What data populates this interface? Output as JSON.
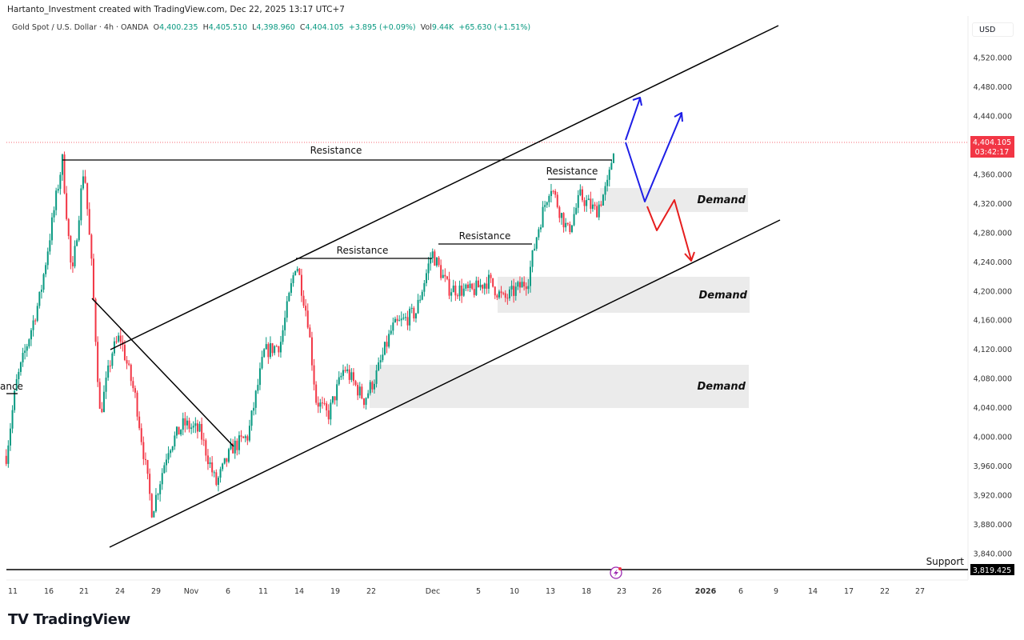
{
  "header": {
    "credit": "Hartanto_Investment created with TradingView.com, Dec 22, 2025 13:17 UTC+7"
  },
  "legend": {
    "symbol": "Gold Spot / U.S. Dollar · 4h · OANDA",
    "open_label": "O",
    "open": "4,400.235",
    "high_label": "H",
    "high": "4,405.510",
    "low_label": "L",
    "low": "4,398.960",
    "close_label": "C",
    "close": "4,404.105",
    "change": "+3.895 (+0.09%)",
    "vol_label": "Vol",
    "vol": "9.44K",
    "vol_change": "+65.630 (+1.51%)"
  },
  "currency": "USD",
  "current_price": {
    "price": "4,404.105",
    "countdown": "03:42:17",
    "color": "#f23645"
  },
  "support_price": "3,819.425",
  "annotations": {
    "resistance": "Resistance",
    "demand": "Demand",
    "support": "Support",
    "cut_label": "ance"
  },
  "colors": {
    "up": "#089981",
    "down": "#f23645",
    "arrow_up": "#1e1ee6",
    "arrow_down": "#e61e1e"
  },
  "branding": "TradingView",
  "chart_data": {
    "type": "candlestick",
    "title": "Gold Spot / U.S. Dollar · 4h · OANDA",
    "ylim": [
      3800,
      4560
    ],
    "y_ticks": [
      "4,520.000",
      "4,480.000",
      "4,440.000",
      "4,360.000",
      "4,320.000",
      "4,280.000",
      "4,240.000",
      "4,200.000",
      "4,160.000",
      "4,120.000",
      "4,080.000",
      "4,040.000",
      "4,000.000",
      "3,960.000",
      "3,920.000",
      "3,880.000",
      "3,840.000"
    ],
    "y_tick_values": [
      4520,
      4480,
      4440,
      4360,
      4320,
      4280,
      4240,
      4200,
      4160,
      4120,
      4080,
      4040,
      4000,
      3960,
      3920,
      3880,
      3840
    ],
    "x_ticks": [
      "11",
      "16",
      "21",
      "24",
      "29",
      "Nov",
      "6",
      "11",
      "14",
      "19",
      "22",
      "Dec",
      "5",
      "10",
      "13",
      "18",
      "23",
      "26",
      "2026",
      "6",
      "9",
      "14",
      "17",
      "22",
      "27"
    ],
    "x_tick_dates": [
      "2025-10-11",
      "2025-10-16",
      "2025-10-21",
      "2025-10-24",
      "2025-10-29",
      "2025-11-01",
      "2025-11-06",
      "2025-11-11",
      "2025-11-14",
      "2025-11-19",
      "2025-11-22",
      "2025-12-01",
      "2025-12-05",
      "2025-12-10",
      "2025-12-13",
      "2025-12-18",
      "2025-12-23",
      "2025-12-26",
      "2026-01-01",
      "2026-01-06",
      "2026-01-09",
      "2026-01-14",
      "2026-01-17",
      "2026-01-22",
      "2026-01-27"
    ],
    "approx_price_path": [
      [
        "2025-10-10T02",
        3974
      ],
      [
        "2025-10-11T11",
        4072
      ],
      [
        "2025-10-14T19",
        4193
      ],
      [
        "2025-10-17T22",
        4380
      ],
      [
        "2025-10-19T07",
        4215
      ],
      [
        "2025-10-21T00",
        4374
      ],
      [
        "2025-10-21T16",
        4226
      ],
      [
        "2025-10-22T08",
        4029
      ],
      [
        "2025-10-23T08",
        4116
      ],
      [
        "2025-10-24T00",
        4138
      ],
      [
        "2025-10-26T05",
        4051
      ],
      [
        "2025-10-28T11",
        3897
      ],
      [
        "2025-10-30T01",
        3985
      ],
      [
        "2025-10-31T09",
        4018
      ],
      [
        "2025-11-02T05",
        4007
      ],
      [
        "2025-11-04T09",
        3935
      ],
      [
        "2025-11-06T14",
        3985
      ],
      [
        "2025-11-08T20",
        4001
      ],
      [
        "2025-11-11T02",
        4116
      ],
      [
        "2025-11-12T10",
        4127
      ],
      [
        "2025-11-13T18",
        4242
      ],
      [
        "2025-11-15T05",
        4160
      ],
      [
        "2025-11-16T08",
        4051
      ],
      [
        "2025-11-18T00",
        4029
      ],
      [
        "2025-11-19T18",
        4095
      ],
      [
        "2025-11-21T10",
        4051
      ],
      [
        "2025-11-22T17",
        4084
      ],
      [
        "2025-11-25T01",
        4149
      ],
      [
        "2025-11-28T13",
        4171
      ],
      [
        "2025-11-30T21",
        4253
      ],
      [
        "2025-12-02T08",
        4204
      ],
      [
        "2025-12-04T10",
        4199
      ],
      [
        "2025-12-06T08",
        4215
      ],
      [
        "2025-12-08T13",
        4188
      ],
      [
        "2025-12-11T03",
        4215
      ],
      [
        "2025-12-11T22",
        4281
      ],
      [
        "2025-12-13T00",
        4347
      ],
      [
        "2025-12-14T08",
        4309
      ],
      [
        "2025-12-15T11",
        4281
      ],
      [
        "2025-12-17T03",
        4330
      ],
      [
        "2025-12-19T09",
        4309
      ],
      [
        "2025-12-21T02",
        4347
      ],
      [
        "2025-12-21T23",
        4404
      ]
    ]
  }
}
